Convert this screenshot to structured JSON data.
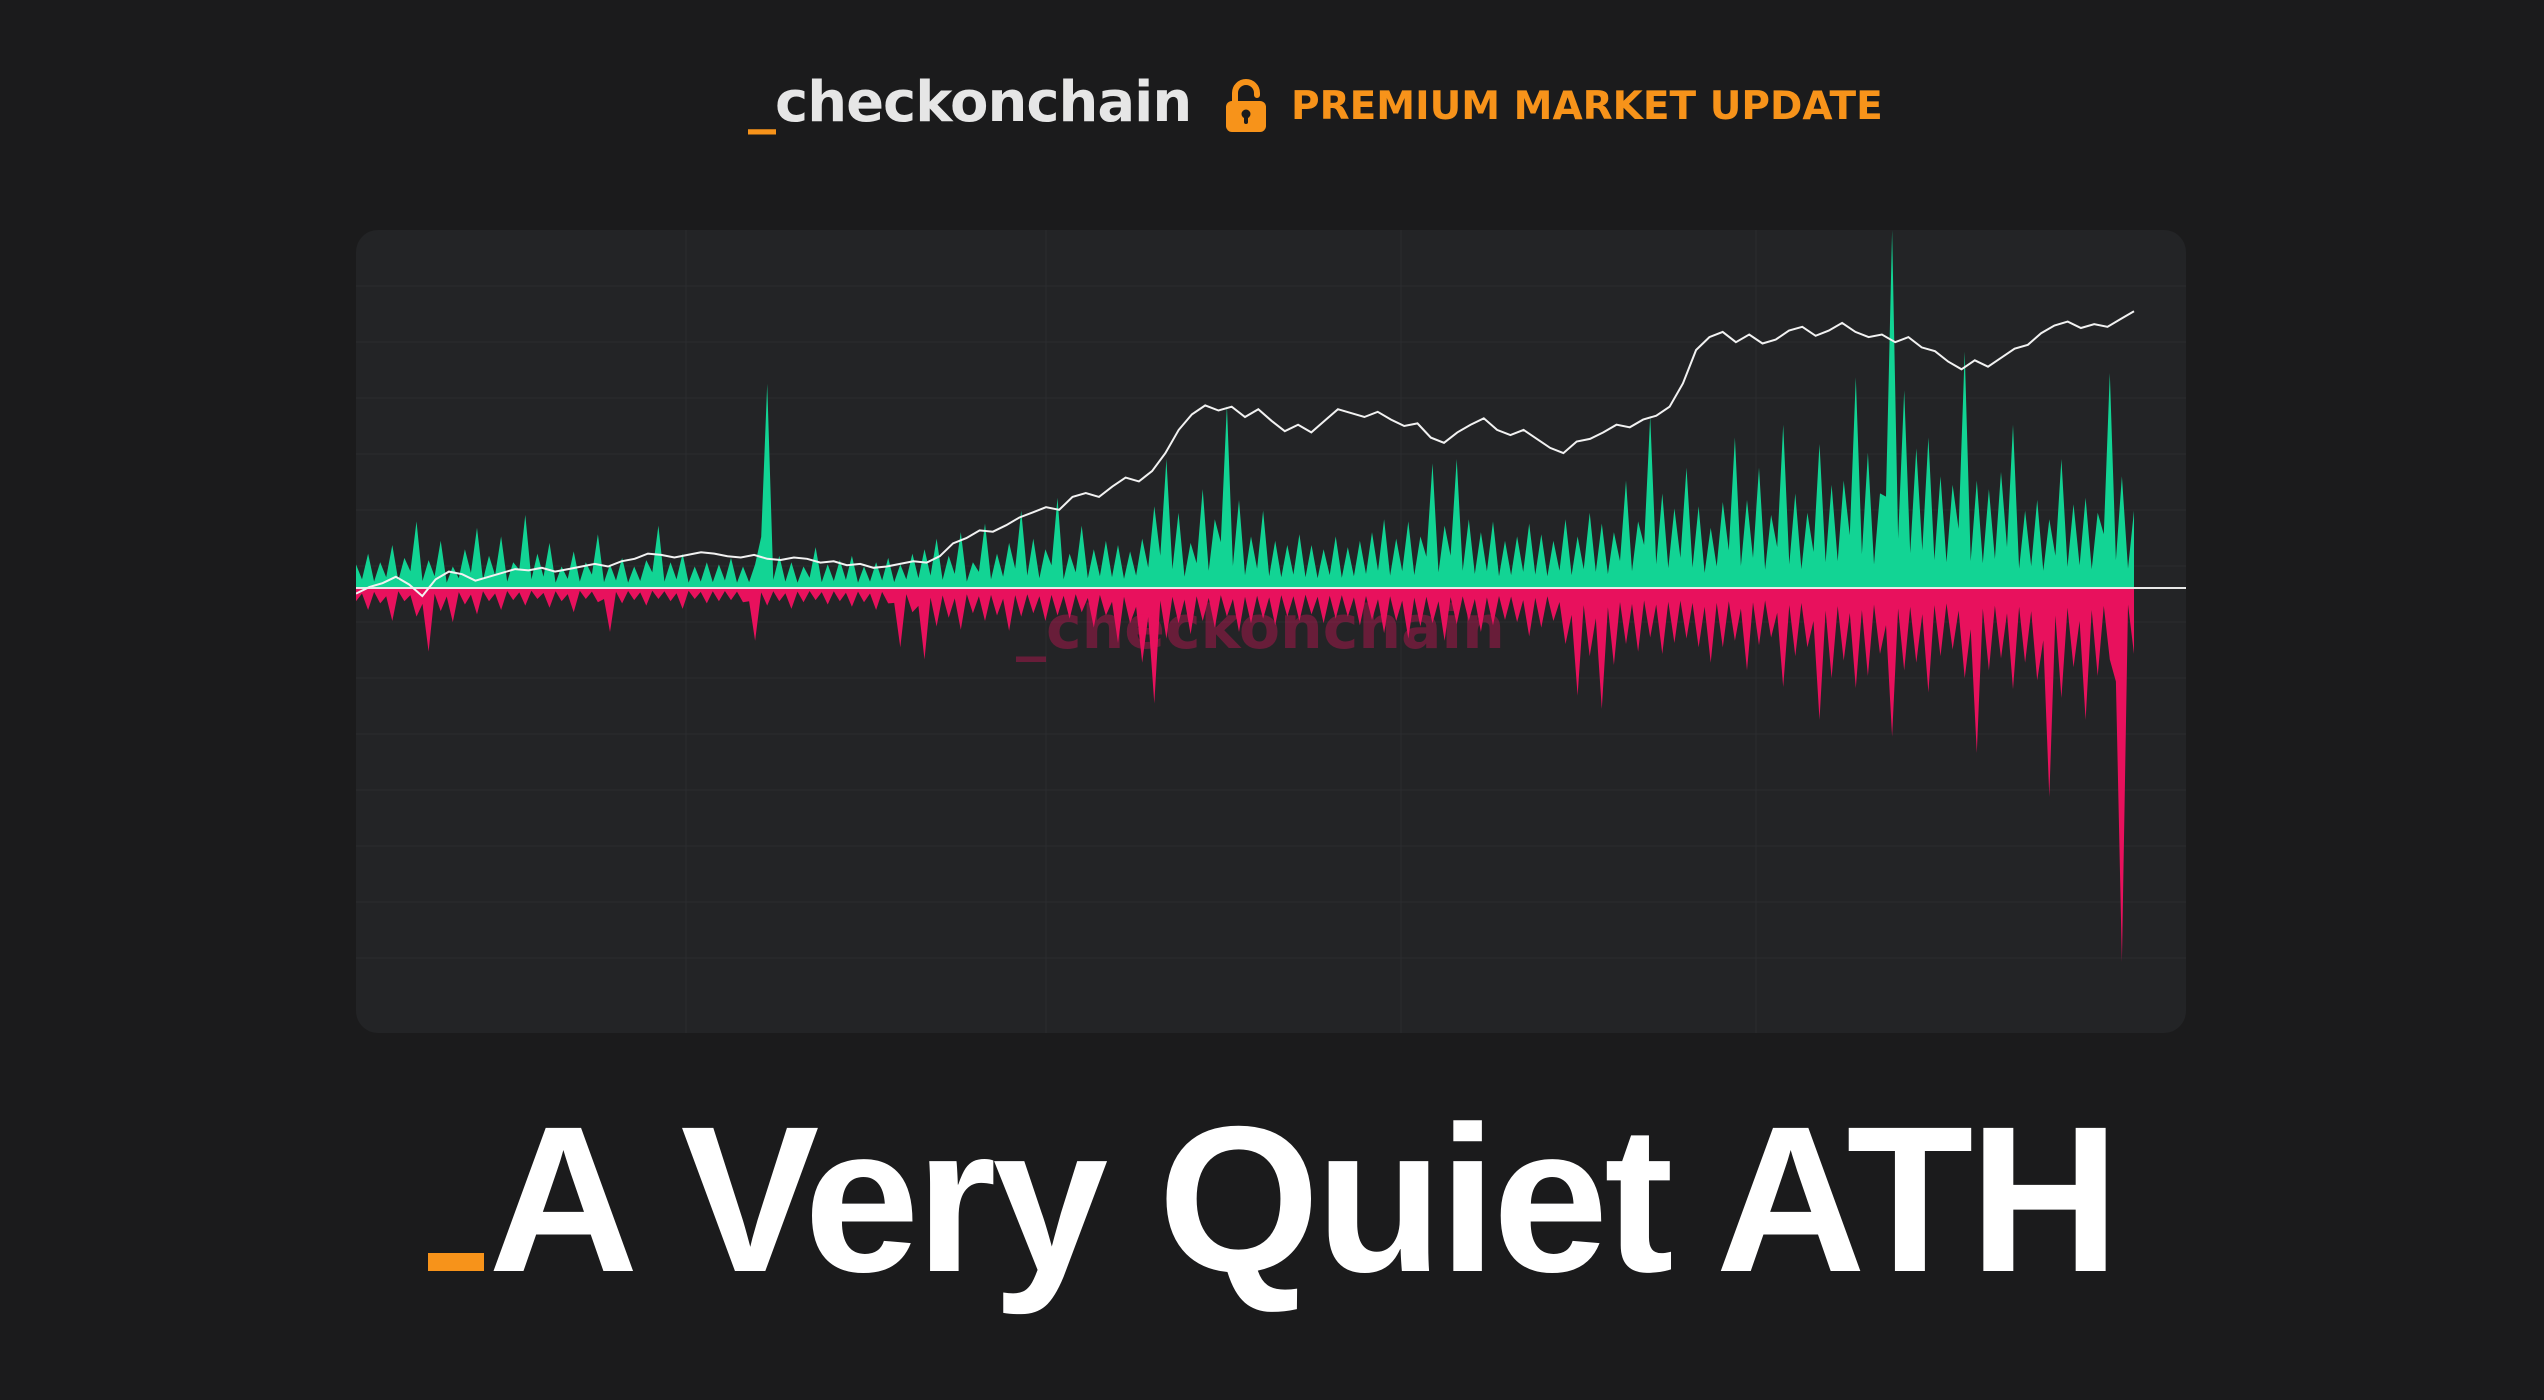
{
  "header": {
    "brand_prefix": "_",
    "brand_name": "checkonchain",
    "premium_label": "PREMIUM MARKET UPDATE",
    "lock_icon": "unlocked-padlock-icon",
    "accent_color": "#f7931a"
  },
  "chart_data": {
    "type": "area",
    "title": "",
    "xlabel": "",
    "ylabel": "",
    "grid": true,
    "watermark": "_checkonchain",
    "series": [
      {
        "color": "#12d494",
        "kind": "positive-area",
        "values": [
          1.1,
          1.6,
          1.2,
          2.0,
          1.4,
          3.1,
          1.3,
          2.2,
          1.0,
          1.8,
          2.8,
          1.5,
          2.4,
          1.2,
          3.4,
          1.6,
          2.1,
          1.0,
          1.7,
          1.2,
          2.5,
          1.1,
          1.4,
          1.0,
          1.3,
          2.9,
          1.2,
          1.6,
          1.0,
          1.2,
          1.1,
          1.4,
          1.0,
          1.1,
          9.5,
          1.5,
          1.2,
          1.0,
          1.9,
          1.1,
          1.3,
          1.5,
          1.0,
          1.2,
          1.4,
          1.1,
          1.6,
          1.8,
          2.3,
          1.5,
          2.6,
          1.2,
          3.0,
          1.6,
          2.1,
          3.6,
          2.3,
          1.8,
          4.2,
          1.6,
          2.9,
          1.8,
          2.2,
          2.0,
          1.7,
          2.3,
          3.8,
          6.0,
          3.5,
          2.1,
          4.6,
          3.2,
          8.5,
          4.1,
          2.4,
          3.6,
          2.2,
          2.0,
          2.5,
          2.0,
          1.8,
          2.4,
          1.9,
          2.2,
          2.6,
          3.2,
          2.3,
          3.1,
          2.4,
          5.8,
          2.9,
          6.0,
          3.2,
          2.6,
          3.1,
          2.2,
          2.4,
          3.0,
          2.5,
          2.2,
          3.2,
          2.4,
          3.5,
          3.0,
          2.6,
          5.0,
          3.1,
          8.0,
          4.4,
          3.7,
          5.6,
          3.8,
          2.8,
          4.0,
          7.0,
          4.1,
          5.6,
          3.4,
          7.6,
          4.4,
          3.5,
          6.7,
          4.8,
          5.0,
          9.8,
          6.3,
          4.4,
          17.0,
          9.2,
          6.5,
          7.0,
          5.2,
          4.8,
          11.0,
          5.0,
          4.6,
          5.4,
          7.6,
          3.6,
          4.1,
          3.2,
          6.0,
          3.9,
          4.2,
          3.5,
          10.0,
          5.2,
          3.6
        ],
        "note": "volume-like spikes, positive (relative units)"
      },
      {
        "color": "#e8115d",
        "kind": "negative-area",
        "values": [
          -1.2,
          -2.0,
          -1.4,
          -3.0,
          -1.2,
          -2.6,
          -5.8,
          -2.1,
          -3.1,
          -1.5,
          -2.4,
          -1.2,
          -2.0,
          -1.1,
          -1.6,
          -1.0,
          -1.8,
          -1.2,
          -2.2,
          -1.0,
          -1.3,
          -4.0,
          -1.4,
          -1.1,
          -1.6,
          -1.0,
          -1.2,
          -1.9,
          -1.0,
          -1.4,
          -1.2,
          -1.1,
          -1.3,
          -4.8,
          -1.6,
          -1.2,
          -1.9,
          -1.3,
          -1.1,
          -1.5,
          -1.2,
          -1.7,
          -1.3,
          -2.0,
          -1.4,
          -5.4,
          -2.2,
          -6.5,
          -3.5,
          -2.7,
          -3.8,
          -2.3,
          -3.0,
          -2.5,
          -3.9,
          -2.6,
          -2.3,
          -3.0,
          -2.5,
          -2.8,
          -2.2,
          -3.6,
          -2.5,
          -5.0,
          -3.2,
          -6.8,
          -10.5,
          -4.6,
          -3.2,
          -4.2,
          -3.0,
          -3.6,
          -2.6,
          -4.0,
          -3.2,
          -2.8,
          -3.4,
          -2.6,
          -3.0,
          -2.4,
          -3.2,
          -2.8,
          -2.6,
          -3.4,
          -2.9,
          -4.1,
          -3.0,
          -4.6,
          -3.5,
          -3.2,
          -4.8,
          -3.3,
          -3.0,
          -4.0,
          -3.4,
          -2.9,
          -3.1,
          -4.4,
          -3.6,
          -3.0,
          -5.1,
          -9.8,
          -6.2,
          -11.0,
          -7.0,
          -5.1,
          -5.8,
          -4.5,
          -6.0,
          -5.0,
          -4.6,
          -5.4,
          -6.8,
          -5.4,
          -4.8,
          -7.5,
          -5.2,
          -4.5,
          -9.0,
          -6.2,
          -5.4,
          -12.0,
          -8.2,
          -6.6,
          -9.1,
          -8.0,
          -6.0,
          -13.5,
          -7.5,
          -6.8,
          -9.5,
          -6.2,
          -5.6,
          -8.2,
          -15.0,
          -7.5,
          -6.4,
          -9.2,
          -6.8,
          -8.4,
          -19.0,
          -10.0,
          -7.2,
          -12.0,
          -8.0,
          -6.5,
          -34.0,
          -6.0
        ],
        "note": "volume-like spikes, negative (relative units)"
      },
      {
        "color": "#f2f2f2",
        "kind": "price-line",
        "values": [
          0.5,
          1.0,
          1.3,
          1.8,
          1.2,
          0.3,
          1.6,
          2.2,
          2.0,
          1.5,
          1.8,
          2.1,
          2.4,
          2.3,
          2.5,
          2.2,
          2.4,
          2.6,
          2.8,
          2.6,
          3.0,
          3.2,
          3.6,
          3.5,
          3.3,
          3.5,
          3.7,
          3.6,
          3.4,
          3.3,
          3.5,
          3.2,
          3.1,
          3.3,
          3.2,
          2.9,
          3.0,
          2.7,
          2.8,
          2.5,
          2.6,
          2.8,
          3.0,
          2.9,
          3.4,
          4.4,
          4.8,
          5.4,
          5.3,
          5.8,
          6.4,
          6.8,
          7.2,
          7.0,
          8.0,
          8.3,
          8.0,
          8.8,
          9.5,
          9.2,
          10.0,
          11.4,
          13.2,
          14.4,
          15.1,
          14.7,
          15.0,
          14.2,
          14.8,
          13.9,
          13.1,
          13.6,
          13.0,
          13.9,
          14.8,
          14.5,
          14.2,
          14.6,
          14.0,
          13.5,
          13.7,
          12.6,
          12.2,
          13.0,
          13.6,
          14.1,
          13.2,
          12.8,
          13.2,
          12.5,
          11.8,
          11.4,
          12.3,
          12.5,
          13.0,
          13.6,
          13.4,
          14.0,
          14.3,
          15.0,
          16.8,
          19.4,
          20.4,
          20.8,
          20.0,
          20.6,
          19.9,
          20.2,
          20.9,
          21.2,
          20.5,
          20.9,
          21.5,
          20.8,
          20.4,
          20.6,
          20.0,
          20.4,
          19.6,
          19.3,
          18.5,
          17.9,
          18.6,
          18.1,
          18.8,
          19.5,
          19.8,
          20.7,
          21.3,
          21.6,
          21.1,
          21.4,
          21.2,
          21.8,
          22.4
        ],
        "note": "price line, relative units"
      }
    ]
  },
  "title": {
    "prefix": "_",
    "text": "A Very Quiet ATH"
  }
}
